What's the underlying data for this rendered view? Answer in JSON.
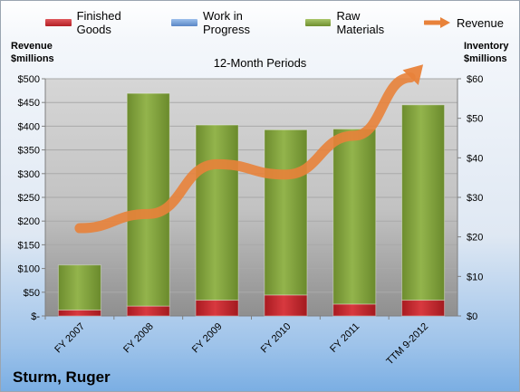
{
  "chart_data": {
    "type": "bar",
    "subtitle": "12-Month Periods",
    "categories": [
      "FY 2007",
      "FY 2008",
      "FY 2009",
      "FY 2010",
      "FY 2011",
      "TTM 9-2012"
    ],
    "series": [
      {
        "name": "Finished Goods",
        "axis": "right",
        "color": "#c0272d",
        "values": [
          1.5,
          2.5,
          4.0,
          5.3,
          3.0,
          4.0
        ]
      },
      {
        "name": "Work in Progress",
        "axis": "right",
        "color": "#6b97d4",
        "values": [
          0,
          0,
          0,
          0,
          0,
          0
        ]
      },
      {
        "name": "Raw Materials",
        "axis": "right",
        "color": "#7e9f3a",
        "values": [
          11.4,
          53.8,
          44.3,
          41.8,
          44.3,
          49.4
        ]
      },
      {
        "name": "Revenue",
        "axis": "left",
        "type": "line",
        "color": "#e8823a",
        "values": [
          185,
          215,
          320,
          298,
          380,
          530
        ]
      }
    ],
    "left_axis": {
      "title": [
        "Revenue",
        "$millions"
      ],
      "min": 0,
      "max": 500,
      "step": 50,
      "tick_labels": [
        "$-",
        "$50",
        "$100",
        "$150",
        "$200",
        "$250",
        "$300",
        "$350",
        "$400",
        "$450",
        "$500"
      ]
    },
    "right_axis": {
      "title": [
        "Inventory",
        "$millions"
      ],
      "min": 0,
      "max": 60,
      "step": 10,
      "tick_labels": [
        "$0",
        "$10",
        "$20",
        "$30",
        "$40",
        "$50",
        "$60"
      ]
    },
    "legend": "top"
  },
  "company_name": "Sturm, Ruger",
  "colors": {
    "finished": "#c0272d",
    "wip": "#6b97d4",
    "raw": "#7e9f3a",
    "revenue": "#e8823a"
  }
}
